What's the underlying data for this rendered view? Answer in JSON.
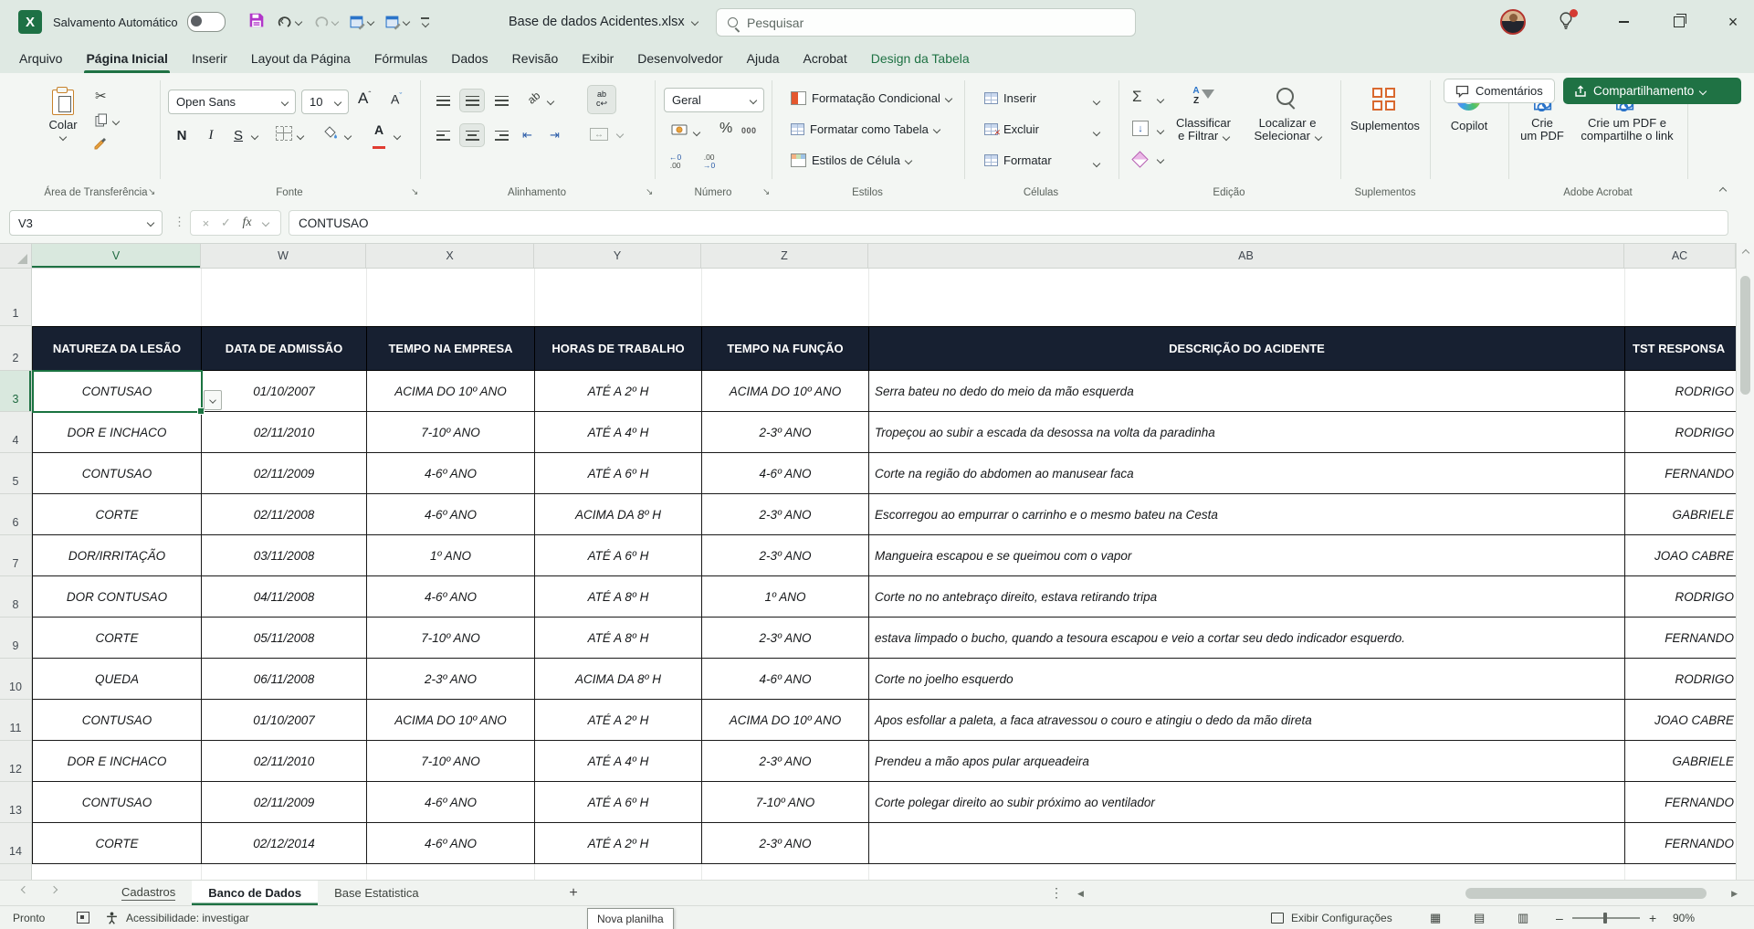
{
  "colors": {
    "accent_green": "#1f7244",
    "table_header_navy": "#172031",
    "selection_green": "#1a7340",
    "save_icon_purple": "#b136c9",
    "addins_orange": "#d9692f",
    "font_color_red": "#e03c31"
  },
  "title_bar": {
    "app_badge": "X",
    "autosave": "Salvamento Automático",
    "document": "Base de dados Acidentes.xlsx",
    "search_placeholder": "Pesquisar"
  },
  "tabs": {
    "items": [
      {
        "label": "Arquivo"
      },
      {
        "label": "Página Inicial",
        "active": true
      },
      {
        "label": "Inserir"
      },
      {
        "label": "Layout da Página"
      },
      {
        "label": "Fórmulas"
      },
      {
        "label": "Dados"
      },
      {
        "label": "Revisão"
      },
      {
        "label": "Exibir"
      },
      {
        "label": "Desenvolvedor"
      },
      {
        "label": "Ajuda"
      },
      {
        "label": "Acrobat"
      },
      {
        "label": "Design da Tabela",
        "contextual": true
      }
    ]
  },
  "ribbon": {
    "paste": "Colar",
    "font_name": "Open Sans",
    "font_size": "10",
    "bold": "N",
    "italic": "I",
    "underline": "S",
    "wrap_ab": "ab",
    "orient_ab": "ab",
    "number_format": "Geral",
    "percent": "%",
    "thousands": "000",
    "dec_left_top": "←0",
    "dec_left_bot": ".00",
    "dec_right_top": ".00",
    "dec_right_bot": "→0",
    "conditional_formatting": "Formatação Condicional",
    "format_as_table": "Formatar como Tabela",
    "cell_styles": "Estilos de Célula",
    "insert": "Inserir",
    "delete": "Excluir",
    "format": "Formatar",
    "sum": "Σ",
    "sort_a": "A",
    "sort_z": "Z",
    "sort_filter_1": "Classificar",
    "sort_filter_2": "e Filtrar",
    "find_select_1": "Localizar e",
    "find_select_2": "Selecionar",
    "addins": "Suplementos",
    "copilot": "Copilot",
    "create_pdf_1": "Crie",
    "create_pdf_2": "um PDF",
    "create_share_pdf_1": "Crie um PDF e",
    "create_share_pdf_2": "compartilhe o link",
    "comments": "Comentários",
    "share": "Compartilhamento",
    "groups": [
      "Área de Transferência",
      "Fonte",
      "Alinhamento",
      "Número",
      "Estilos",
      "Células",
      "Edição",
      "Suplementos",
      "Adobe Acrobat"
    ]
  },
  "formula_bar": {
    "name_box": "V3",
    "fx": "fx",
    "value": "CONTUSAO"
  },
  "grid": {
    "columns": [
      "V",
      "W",
      "X",
      "Y",
      "Z",
      "AB",
      "AC"
    ],
    "selected_column": "V",
    "selected_row": "3",
    "rows": [
      "1",
      "2",
      "3",
      "4",
      "5",
      "6",
      "7",
      "8",
      "9",
      "10",
      "11",
      "12",
      "13",
      "14"
    ]
  },
  "table": {
    "headers": [
      "NATUREZA DA LESÃO",
      "DATA DE ADMISSÃO",
      "TEMPO NA EMPRESA",
      "HORAS DE TRABALHO",
      "TEMPO NA FUNÇÃO",
      "DESCRIÇÃO DO ACIDENTE",
      "TST RESPONSA"
    ],
    "rows": [
      [
        "CONTUSAO",
        "01/10/2007",
        "ACIMA DO 10º ANO",
        "ATÉ A 2º H",
        "ACIMA DO 10º ANO",
        "Serra bateu no dedo do meio da mão esquerda",
        "RODRIGO"
      ],
      [
        "DOR E INCHACO",
        "02/11/2010",
        "7-10º ANO",
        "ATÉ A 4º H",
        "2-3º ANO",
        "Tropeçou ao subir a escada da desossa na volta da paradinha",
        "RODRIGO"
      ],
      [
        "CONTUSAO",
        "02/11/2009",
        "4-6º ANO",
        "ATÉ A 6º H",
        "4-6º ANO",
        "Corte na região do abdomen ao manusear faca",
        "FERNANDO"
      ],
      [
        "CORTE",
        "02/11/2008",
        "4-6º ANO",
        "ACIMA DA 8º H",
        "2-3º ANO",
        "Escorregou ao empurrar o carrinho e o mesmo bateu na Cesta",
        "GABRIELE"
      ],
      [
        "DOR/IRRITAÇÃO",
        "03/11/2008",
        "1º ANO",
        "ATÉ A 6º H",
        "2-3º ANO",
        "Mangueira escapou e se queimou com o vapor",
        "JOAO CABRE"
      ],
      [
        "DOR CONTUSAO",
        "04/11/2008",
        "4-6º ANO",
        "ATÉ A 8º H",
        "1º ANO",
        "Corte no no antebraço direito, estava retirando tripa",
        "RODRIGO"
      ],
      [
        "CORTE",
        "05/11/2008",
        "7-10º ANO",
        "ATÉ A 8º H",
        "2-3º ANO",
        "estava limpado o bucho, quando a tesoura escapou e veio a cortar seu dedo indicador esquerdo.",
        "FERNANDO"
      ],
      [
        "QUEDA",
        "06/11/2008",
        "2-3º ANO",
        "ACIMA DA 8º H",
        "4-6º ANO",
        "Corte no joelho esquerdo",
        "RODRIGO"
      ],
      [
        "CONTUSAO",
        "01/10/2007",
        "ACIMA DO 10º ANO",
        "ATÉ A 2º H",
        "ACIMA DO 10º ANO",
        "Apos esfollar a paleta, a faca atravessou o couro e atingiu o dedo da mão direta",
        "JOAO CABRE"
      ],
      [
        "DOR E INCHACO",
        "02/11/2010",
        "7-10º ANO",
        "ATÉ A 4º H",
        "2-3º ANO",
        "Prendeu a mão apos pular arqueadeira",
        "GABRIELE"
      ],
      [
        "CONTUSAO",
        "02/11/2009",
        "4-6º ANO",
        "ATÉ A 6º H",
        "7-10º ANO",
        "Corte polegar direito ao subir próximo ao ventilador",
        "FERNANDO"
      ],
      [
        "CORTE",
        "02/12/2014",
        "4-6º ANO",
        "ATÉ A 2º H",
        "2-3º ANO",
        "",
        "FERNANDO"
      ]
    ]
  },
  "sheet_bar": {
    "tabs": [
      {
        "label": "Cadastros",
        "underlined": true
      },
      {
        "label": "Banco de Dados",
        "active": true
      },
      {
        "label": "Base Estatistica"
      }
    ],
    "add": "+",
    "tooltip": "Nova planilha"
  },
  "status_bar": {
    "ready": "Pronto",
    "accessibility": "Acessibilidade: investigar",
    "view_settings": "Exibir Configurações",
    "zoom": "90%"
  }
}
